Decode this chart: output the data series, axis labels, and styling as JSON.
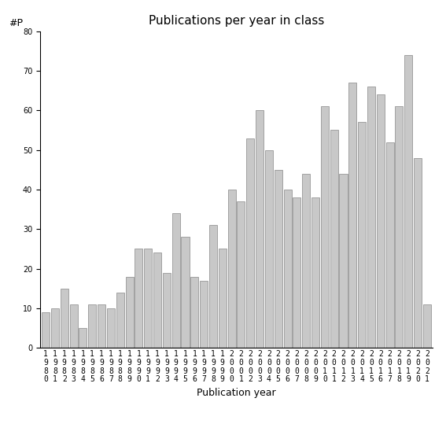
{
  "title": "Publications per year in class",
  "xlabel": "Publication year",
  "ylabel": "#P",
  "years": [
    "1980",
    "1981",
    "1982",
    "1983",
    "1984",
    "1985",
    "1986",
    "1987",
    "1988",
    "1989",
    "1990",
    "1991",
    "1992",
    "1993",
    "1994",
    "1995",
    "1996",
    "1997",
    "1998",
    "1999",
    "2000",
    "2001",
    "2002",
    "2003",
    "2004",
    "2005",
    "2006",
    "2007",
    "2008",
    "2009",
    "2010",
    "2011",
    "2012",
    "2013",
    "2014",
    "2015",
    "2016",
    "2017",
    "2018",
    "2019",
    "2020",
    "2021"
  ],
  "values": [
    9,
    10,
    15,
    11,
    5,
    11,
    11,
    10,
    14,
    18,
    25,
    25,
    24,
    19,
    34,
    28,
    18,
    17,
    31,
    25,
    40,
    37,
    53,
    60,
    50,
    45,
    40,
    38,
    44,
    38,
    61,
    55,
    44,
    67,
    57,
    66,
    64,
    52,
    61,
    74,
    48,
    11
  ],
  "bar_color": "#c8c8c8",
  "bar_edge_color": "#888888",
  "ylim": [
    0,
    80
  ],
  "yticks": [
    0,
    10,
    20,
    30,
    40,
    50,
    60,
    70,
    80
  ],
  "bg_color": "#ffffff",
  "title_fontsize": 11,
  "axis_label_fontsize": 9,
  "tick_fontsize": 7
}
